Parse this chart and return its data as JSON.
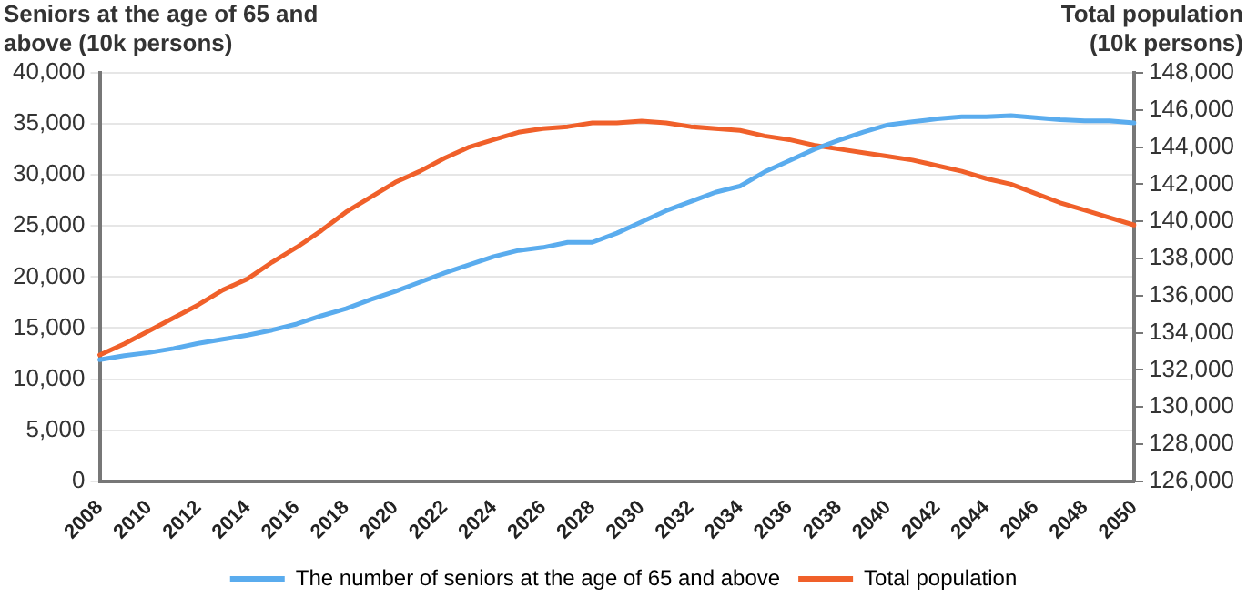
{
  "chart_data": {
    "type": "line",
    "ylabel": "Seniors at the age of 65 and above (10k persons)",
    "y2label": "Total population (10k persons)",
    "categories": [
      "2008",
      null,
      "2010",
      null,
      "2012",
      null,
      "2014",
      null,
      "2016",
      null,
      "2018",
      null,
      "2020",
      null,
      "2022",
      null,
      "2024",
      null,
      "2026",
      null,
      "2028",
      null,
      "2030",
      null,
      "2032",
      null,
      "2034",
      null,
      "2036",
      null,
      "2038",
      null,
      "2040",
      null,
      "2042",
      null,
      "2044",
      null,
      "2046",
      null,
      "2048",
      null,
      "2050"
    ],
    "series": [
      {
        "name": "The number of seniors at the age of 65 and above",
        "color": "#5aacee",
        "values": [
          11900,
          12300,
          12600,
          13000,
          13500,
          13900,
          14300,
          14800,
          15400,
          16200,
          16900,
          17800,
          18600,
          19500,
          20400,
          21200,
          22000,
          22600,
          22900,
          23400,
          23400,
          24300,
          25400,
          26500,
          27400,
          28300,
          28900,
          30300,
          31400,
          32500,
          33400,
          34200,
          34900,
          35200,
          35500,
          35700,
          35700,
          35800,
          35600,
          35400,
          35300,
          35300,
          35100
        ]
      },
      {
        "name": "Total population",
        "color": "#f0602a",
        "axis": "y2",
        "values": [
          132800,
          133400,
          134100,
          134800,
          135500,
          136300,
          136900,
          137800,
          138600,
          139500,
          140500,
          141300,
          142100,
          142700,
          143400,
          144000,
          144400,
          144800,
          145000,
          145100,
          145300,
          145300,
          145400,
          145300,
          145100,
          145000,
          144900,
          144600,
          144400,
          144100,
          143900,
          143700,
          143500,
          143300,
          143000,
          142700,
          142300,
          142000,
          141500,
          141000,
          140600,
          140200,
          139800
        ]
      }
    ],
    "ylim": [
      0,
      40000
    ],
    "yticks": [
      0,
      {
        "value": 5000,
        "label": "5,000"
      },
      {
        "value": 10000,
        "label": "10,000"
      },
      {
        "value": 15000,
        "label": "15,000"
      },
      {
        "value": 20000,
        "label": "20,000"
      },
      {
        "value": 25000,
        "label": "25,000"
      },
      {
        "value": 30000,
        "label": "30,000"
      },
      {
        "value": 35000,
        "label": "35,000"
      },
      {
        "value": 40000,
        "label": "40,000"
      }
    ],
    "y2lim": [
      126000,
      148000
    ],
    "y2ticks": [
      {
        "value": 126000,
        "label": "126,000"
      },
      {
        "value": 128000,
        "label": "128,000"
      },
      {
        "value": 130000,
        "label": "130,000"
      },
      {
        "value": 132000,
        "label": "132,000"
      },
      {
        "value": 134000,
        "label": "134,000"
      },
      {
        "value": 136000,
        "label": "136,000"
      },
      {
        "value": 138000,
        "label": "138,000"
      },
      {
        "value": 140000,
        "label": "140,000"
      },
      {
        "value": 142000,
        "label": "142,000"
      },
      {
        "value": 144000,
        "label": "144,000"
      },
      {
        "value": 146000,
        "label": "146,000"
      },
      {
        "value": 148000,
        "label": "148,000"
      }
    ],
    "grid": "y",
    "legend": "bottom",
    "marker": "none",
    "line_style": "solid"
  }
}
